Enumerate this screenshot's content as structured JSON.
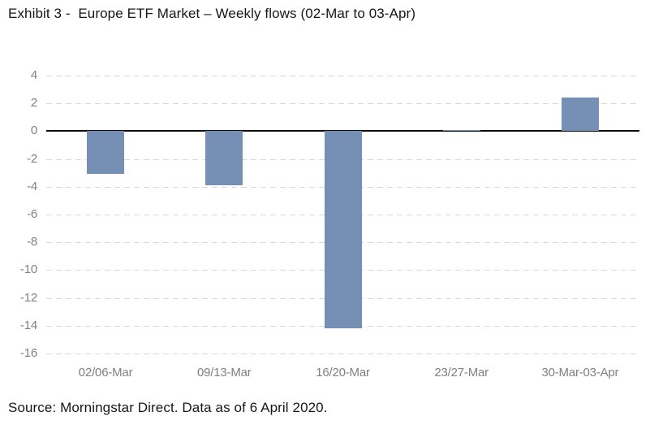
{
  "header": {
    "title": "Exhibit 3 -  Europe ETF Market – Weekly flows (02-Mar to 03-Apr)"
  },
  "footer": {
    "source": "Source: Morningstar Direct. Data as of 6 April 2020."
  },
  "colors": {
    "bar": "#7590b4",
    "gridline": "#d9d9d9",
    "axis_line": "#0d0d0d",
    "tick_label": "#808080",
    "text": "#171717",
    "background": "#ffffff"
  },
  "chart_data": {
    "type": "bar",
    "title": "Exhibit 3 -  Europe ETF Market – Weekly flows (02-Mar to 03-Apr)",
    "categories": [
      "02/06-Mar",
      "09/13-Mar",
      "16/20-Mar",
      "23/27-Mar",
      "30-Mar-03-Apr"
    ],
    "values": [
      -3.1,
      -3.9,
      -14.2,
      0.1,
      2.4
    ],
    "xlabel": "",
    "ylabel": "",
    "ylim": [
      -16,
      4
    ],
    "yticks": [
      4,
      2,
      0,
      -2,
      -4,
      -6,
      -8,
      -10,
      -12,
      -14,
      -16
    ],
    "grid": "horizontal-dashed",
    "zero_line": "solid-black",
    "legend": "none",
    "source": "Source: Morningstar Direct. Data as of 6 April 2020."
  }
}
